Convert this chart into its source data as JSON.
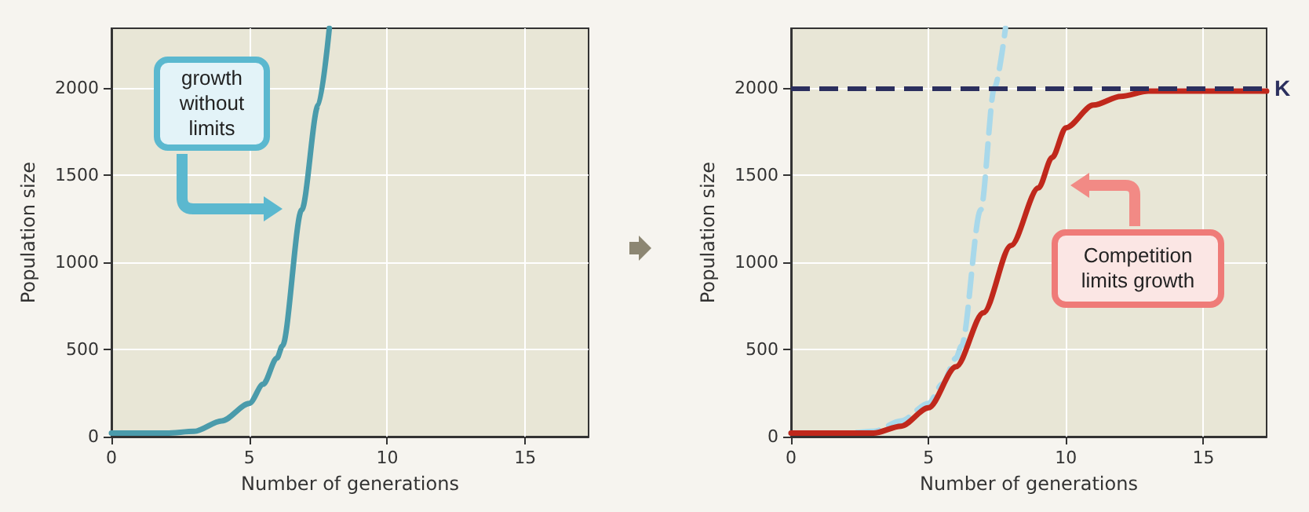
{
  "chart_data": [
    {
      "type": "line",
      "xlabel": "Number of generations",
      "ylabel": "Population size",
      "xlim": [
        0,
        17.3
      ],
      "ylim": [
        0,
        2340
      ],
      "xticks": [
        0,
        5,
        10,
        15
      ],
      "yticks": [
        0,
        500,
        1000,
        1500,
        2000
      ],
      "grid": true,
      "marker": "none",
      "series": [
        {
          "color": "#4a9bab",
          "line_style": "solid",
          "x": [
            0,
            2,
            3,
            4,
            5,
            5.5,
            6,
            6.2,
            6.9,
            7.5,
            7.9
          ],
          "values": [
            20,
            20,
            30,
            90,
            190,
            300,
            450,
            520,
            1300,
            1900,
            2340
          ]
        }
      ],
      "annotations": [
        "growth without limits"
      ]
    },
    {
      "type": "line",
      "xlabel": "Number of generations",
      "ylabel": "Population size",
      "xlim": [
        0,
        17.3
      ],
      "ylim": [
        0,
        2340
      ],
      "xticks": [
        0,
        5,
        10,
        15
      ],
      "yticks": [
        0,
        500,
        1000,
        1500,
        2000
      ],
      "grid": true,
      "marker": "none",
      "series": [
        {
          "color": "#a8d8ea",
          "line_style": "dashed",
          "x": [
            0,
            2,
            3,
            4,
            5,
            5.5,
            6,
            6.2,
            6.9,
            7.4,
            7.8
          ],
          "values": [
            20,
            20,
            30,
            90,
            190,
            300,
            450,
            520,
            1300,
            2000,
            2340
          ]
        },
        {
          "color": "#c0281c",
          "line_style": "solid",
          "x": [
            0,
            3,
            4,
            5,
            6,
            7,
            8,
            9,
            9.5,
            10,
            11,
            12,
            13,
            17.3
          ],
          "values": [
            20,
            20,
            60,
            165,
            400,
            710,
            1095,
            1425,
            1600,
            1770,
            1900,
            1950,
            1980,
            1980
          ]
        }
      ],
      "ref_lines": [
        {
          "axis": "y",
          "value": 2000,
          "label": "K",
          "color": "#2b2f5e",
          "line_style": "dashed"
        }
      ],
      "annotations": [
        "Competition limits growth"
      ]
    }
  ]
}
